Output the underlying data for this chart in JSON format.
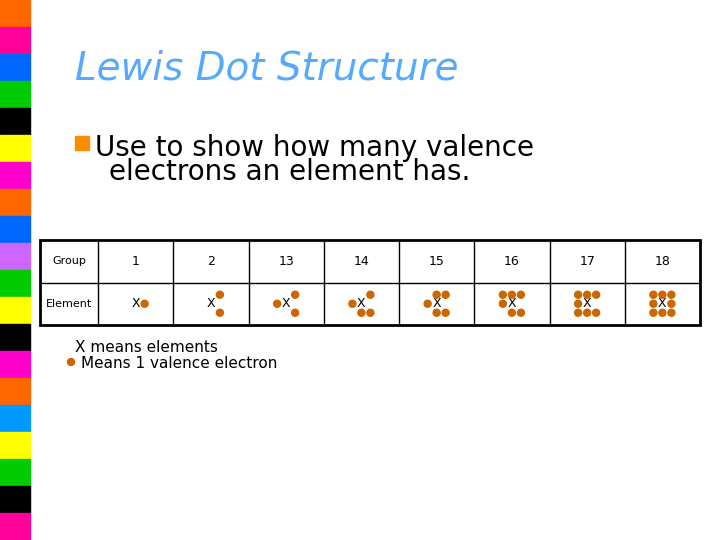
{
  "title": "Lewis Dot Structure",
  "title_color": "#55aaff",
  "title_fontsize": 28,
  "bullet_color": "#ff8c00",
  "bullet_text_line1": "Use to show how many valence",
  "bullet_text_line2": "electrons an element has.",
  "bullet_fontsize": 20,
  "table_groups": [
    "Group",
    "1",
    "2",
    "13",
    "14",
    "15",
    "16",
    "17",
    "18"
  ],
  "dot_color": "#cc6600",
  "bg_color": "#ffffff",
  "left_bar_colors": [
    "#ff6600",
    "#ff0099",
    "#0066ff",
    "#00cc00",
    "#000000",
    "#ffff00",
    "#ff00cc",
    "#ff6600",
    "#0066ff",
    "#cc66ff",
    "#00cc00",
    "#ffff00",
    "#000000",
    "#ff00cc",
    "#ff6600",
    "#0099ff",
    "#ffff00",
    "#00cc00",
    "#000000",
    "#ff0099"
  ],
  "footnote1": "X means elements",
  "footnote2": "Means 1 valence electron",
  "footnote_fontsize": 11
}
